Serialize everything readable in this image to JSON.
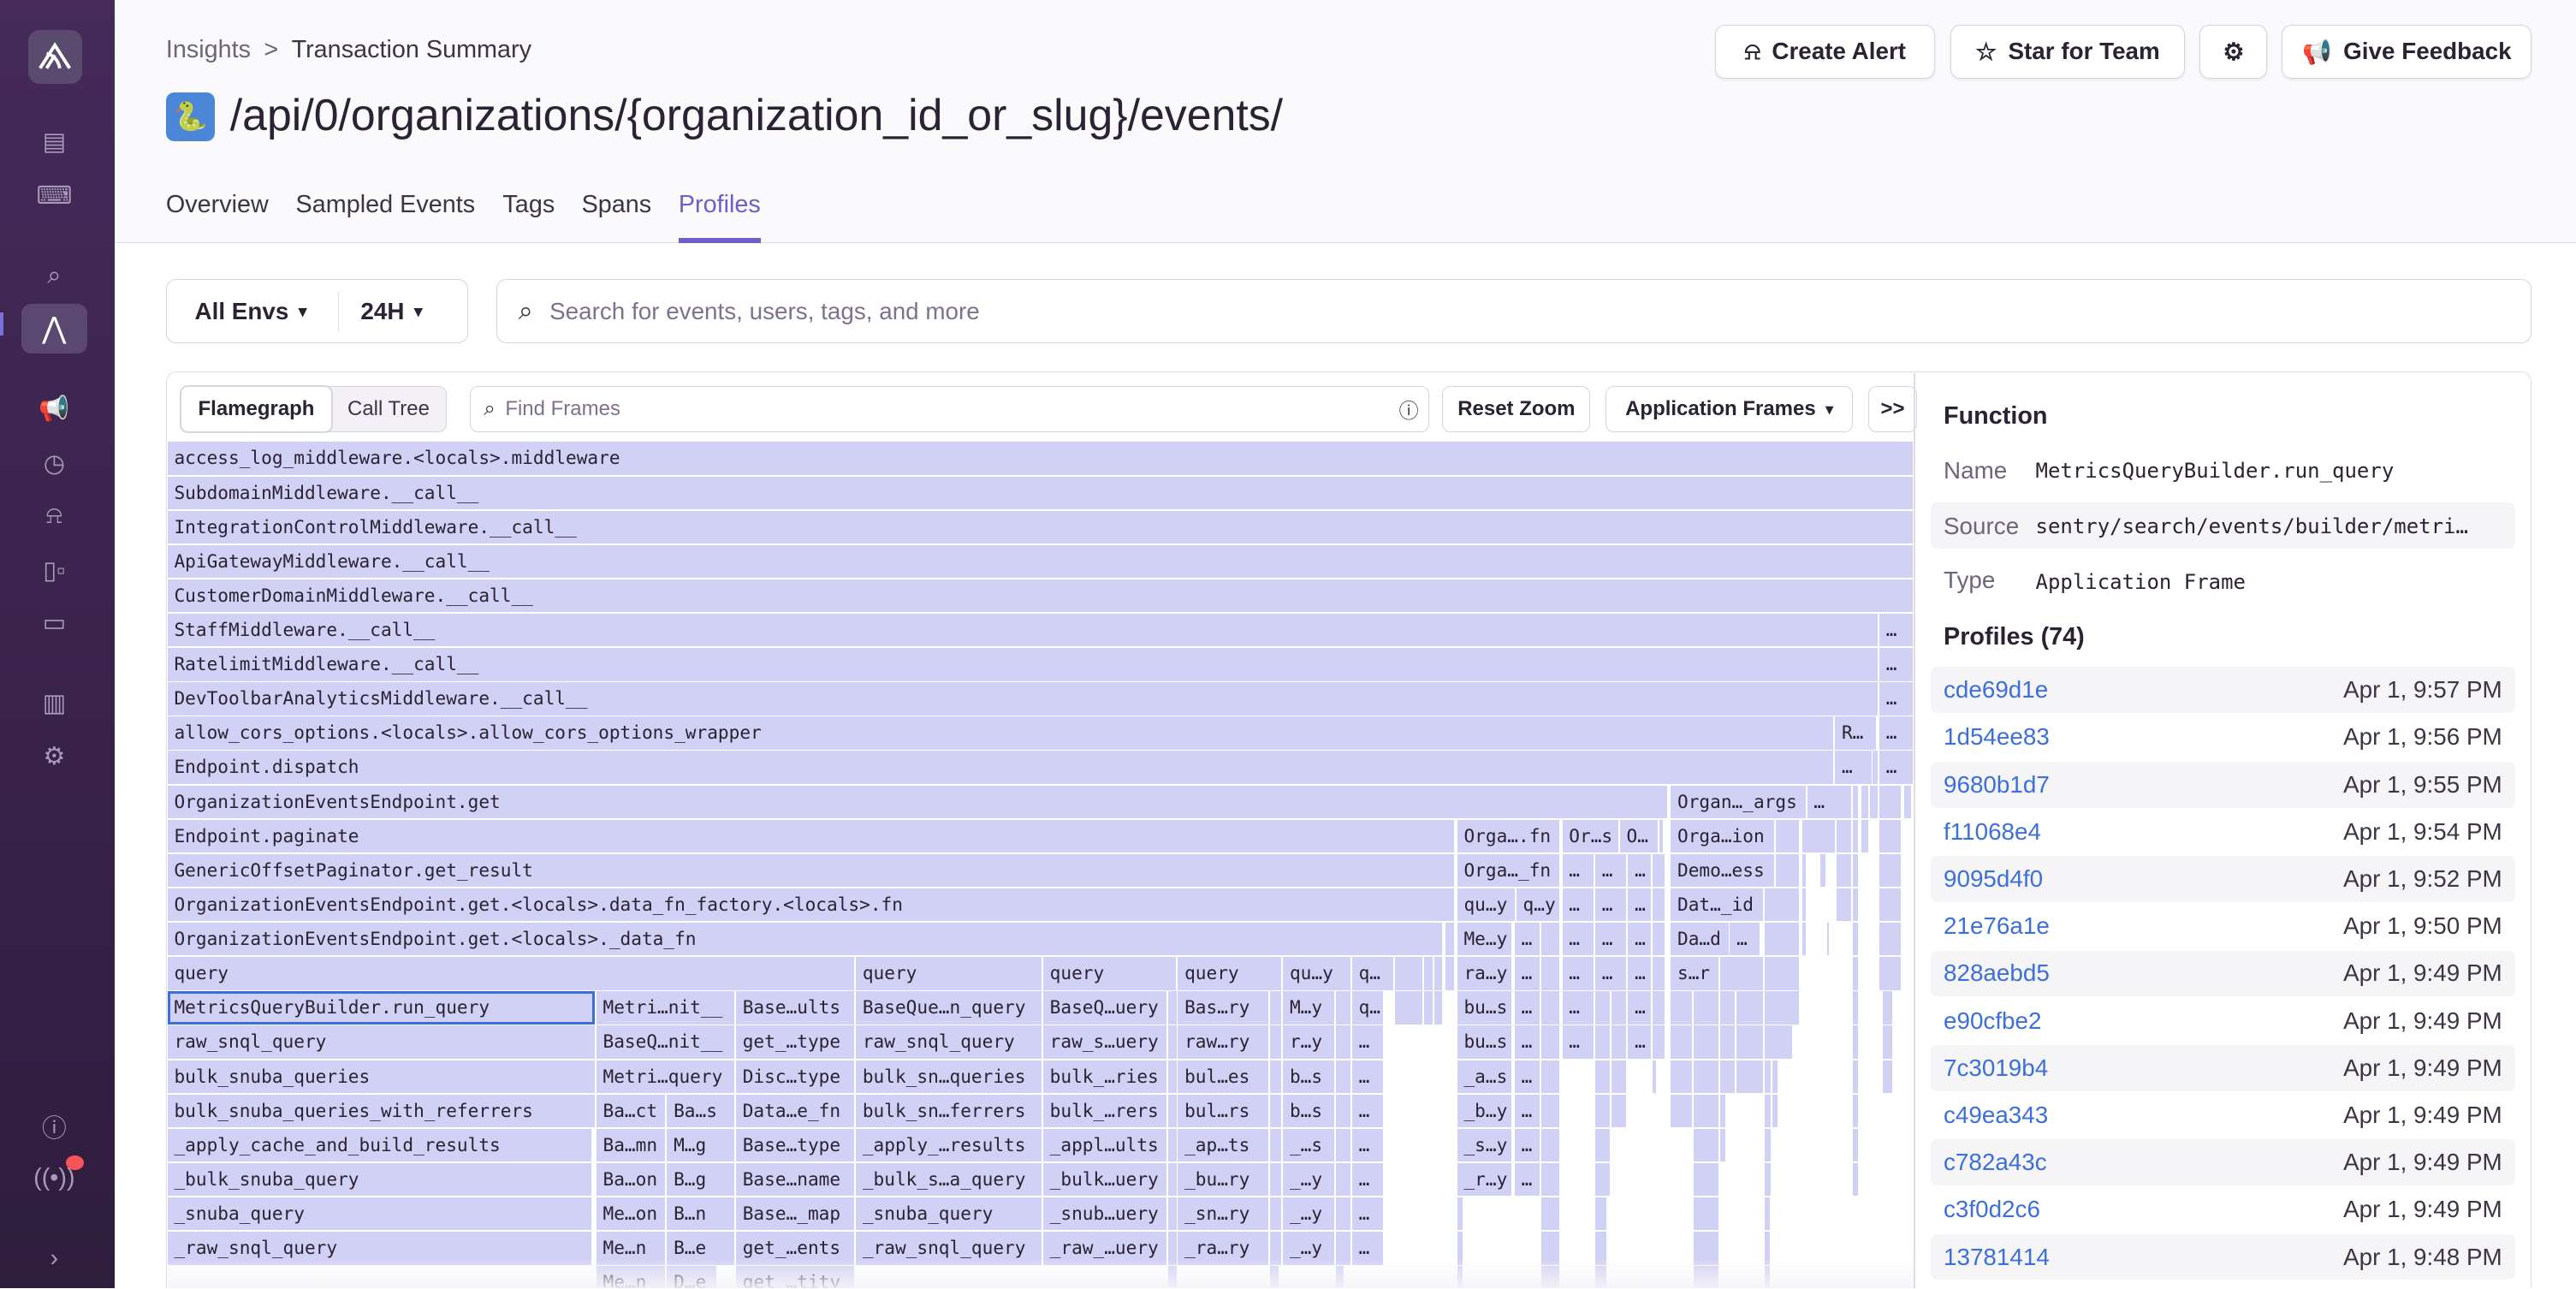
{
  "breadcrumb": {
    "parent": "Insights",
    "separator": ">",
    "current": "Transaction Summary"
  },
  "title": "/api/0/organizations/{organization_id_or_slug}/events/",
  "header_buttons": {
    "create_alert": "Create Alert",
    "star_for_team": "Star for Team",
    "give_feedback": "Give Feedback"
  },
  "tabs": [
    {
      "label": "Overview"
    },
    {
      "label": "Sampled Events"
    },
    {
      "label": "Tags"
    },
    {
      "label": "Spans"
    },
    {
      "label": "Profiles",
      "active": true
    }
  ],
  "filters": {
    "environment": "All Envs",
    "period": "24H",
    "search_placeholder": "Search for events, users, tags, and more"
  },
  "toolbar": {
    "flamegraph": "Flamegraph",
    "call_tree": "Call Tree",
    "find_placeholder": "Find Frames",
    "reset_zoom": "Reset Zoom",
    "frames_filter": "Application Frames",
    "expand": ">>"
  },
  "colors": {
    "accent": "#6c5fc7",
    "frame": "#d1d0f5",
    "link": "#3c6fd8",
    "sidebar": "#3e2650",
    "notification": "#f55459"
  },
  "flamegraph": {
    "rows": [
      [
        "access_log_middleware.<locals>.middleware"
      ],
      [
        "SubdomainMiddleware.__call__"
      ],
      [
        "IntegrationControlMiddleware.__call__"
      ],
      [
        "ApiGatewayMiddleware.__call__"
      ],
      [
        "CustomerDomainMiddleware.__call__"
      ],
      [
        "StaffMiddleware.__call__",
        "…"
      ],
      [
        "RatelimitMiddleware.__call__",
        "…"
      ],
      [
        "DevToolbarAnalyticsMiddleware.__call__",
        "…"
      ],
      [
        "allow_cors_options.<locals>.allow_cors_options_wrapper",
        "R…",
        "…"
      ],
      [
        "Endpoint.dispatch",
        "…",
        "",
        "…"
      ],
      [
        "OrganizationEventsEndpoint.get",
        "Organ…_args",
        "…",
        "",
        "",
        "",
        "",
        ""
      ],
      [
        "Endpoint.paginate",
        "Orga….fn",
        "Or…s",
        "O…",
        "",
        "Orga…ion",
        "",
        "",
        "",
        "",
        "",
        ""
      ],
      [
        "GenericOffsetPaginator.get_result",
        "Orga…_fn",
        "…",
        "…",
        "…",
        "",
        "Demo…ess",
        "",
        "",
        "",
        "",
        "",
        ""
      ],
      [
        "OrganizationEventsEndpoint.get.<locals>.data_fn_factory.<locals>.fn",
        "qu…y",
        "q…y",
        "…",
        "…",
        "…",
        "",
        "Dat…_id",
        "",
        "",
        "",
        "",
        ""
      ],
      [
        "OrganizationEventsEndpoint.get.<locals>._data_fn",
        "",
        "Me…y",
        "…",
        "",
        "…",
        "…",
        "…",
        "",
        "Da…d",
        "…",
        "",
        "",
        "",
        "",
        ""
      ],
      [
        "query",
        "query",
        "query",
        "query",
        "qu…y",
        "q…",
        "",
        "",
        "",
        "",
        "ra…y",
        "…",
        "",
        "…",
        "…",
        "…",
        "",
        "s…r",
        "",
        "",
        "",
        ""
      ],
      [
        "MetricsQueryBuilder.run_query",
        "Metri…nit__",
        "Base…ults",
        "BaseQue…n_query",
        "BaseQ…uery",
        "",
        "Bas…ry",
        "",
        "M…y",
        "",
        "q…",
        "",
        "",
        "",
        "bu…s",
        "…",
        "",
        "…",
        "",
        "",
        "…",
        "",
        "",
        "",
        "",
        "",
        "",
        "",
        ""
      ],
      [
        "raw_snql_query",
        "BaseQ…nit__",
        "get_…type",
        "raw_snql_query",
        "raw_s…uery",
        "",
        "raw…ry",
        "",
        "r…y",
        "",
        "…",
        "bu…s",
        "…",
        "",
        "…",
        "",
        "",
        "…",
        "",
        "",
        "",
        "",
        "",
        "",
        "",
        ""
      ],
      [
        "bulk_snuba_queries",
        "Metri…query",
        "Disc…type",
        "bulk_sn…queries",
        "bulk_…ries",
        "",
        "bul…es",
        "",
        "b…s",
        "",
        "…",
        "_a…s",
        "…",
        "",
        "",
        "",
        "",
        "",
        "",
        "",
        "",
        "",
        "",
        "",
        ""
      ],
      [
        "bulk_snuba_queries_with_referrers",
        "Ba…ct",
        "Ba…s",
        "Data…e_fn",
        "bulk_sn…ferrers",
        "bulk_…rers",
        "",
        "bul…rs",
        "",
        "b…s",
        "",
        "…",
        "_b…y",
        "…",
        "",
        "",
        "",
        "",
        "",
        "",
        "",
        "",
        ""
      ],
      [
        "_apply_cache_and_build_results",
        "Ba…mn",
        "M…g",
        "Base…type",
        "_apply_…results",
        "_appl…ults",
        "",
        "_ap…ts",
        "",
        "_…s",
        "",
        "…",
        "_s…y",
        "…",
        "",
        "",
        "",
        "",
        "",
        ""
      ],
      [
        "_bulk_snuba_query",
        "Ba…on",
        "B…g",
        "Base…name",
        "_bulk_s…a_query",
        "_bulk…uery",
        "",
        "_bu…ry",
        "",
        "_…y",
        "",
        "…",
        "_r…y",
        "…",
        "",
        "",
        "",
        "",
        ""
      ],
      [
        "_snuba_query",
        "Me…on",
        "B…n",
        "Base…_map",
        "_snuba_query",
        "_snub…uery",
        "",
        "_sn…ry",
        "",
        "_…y",
        "",
        "…",
        "",
        "",
        "",
        "",
        ""
      ],
      [
        "_raw_snql_query",
        "Me…n",
        "B…e",
        "get_…ents",
        "_raw_snql_query",
        "_raw_…uery",
        "",
        "_ra…ry",
        "",
        "_…y",
        "",
        "…",
        "",
        "",
        "",
        "",
        ""
      ],
      [
        "Me…n",
        "D…e",
        "get_…tity",
        "",
        "",
        "",
        "",
        "",
        "",
        "",
        ""
      ]
    ]
  },
  "details": {
    "heading": "Function",
    "name_label": "Name",
    "name_value": "MetricsQueryBuilder.run_query",
    "source_label": "Source",
    "source_value": "sentry/search/events/builder/metri…",
    "type_label": "Type",
    "type_value": "Application Frame",
    "profiles_heading": "Profiles (74)",
    "profiles": [
      {
        "id": "cde69d1e",
        "time": "Apr 1, 9:57 PM"
      },
      {
        "id": "1d54ee83",
        "time": "Apr 1, 9:56 PM"
      },
      {
        "id": "9680b1d7",
        "time": "Apr 1, 9:55 PM"
      },
      {
        "id": "f11068e4",
        "time": "Apr 1, 9:54 PM"
      },
      {
        "id": "9095d4f0",
        "time": "Apr 1, 9:52 PM"
      },
      {
        "id": "21e76a1e",
        "time": "Apr 1, 9:50 PM"
      },
      {
        "id": "828aebd5",
        "time": "Apr 1, 9:49 PM"
      },
      {
        "id": "e90cfbe2",
        "time": "Apr 1, 9:49 PM"
      },
      {
        "id": "7c3019b4",
        "time": "Apr 1, 9:49 PM"
      },
      {
        "id": "c49ea343",
        "time": "Apr 1, 9:49 PM"
      },
      {
        "id": "c782a43c",
        "time": "Apr 1, 9:49 PM"
      },
      {
        "id": "c3f0d2c6",
        "time": "Apr 1, 9:49 PM"
      },
      {
        "id": "13781414",
        "time": "Apr 1, 9:48 PM"
      }
    ]
  }
}
